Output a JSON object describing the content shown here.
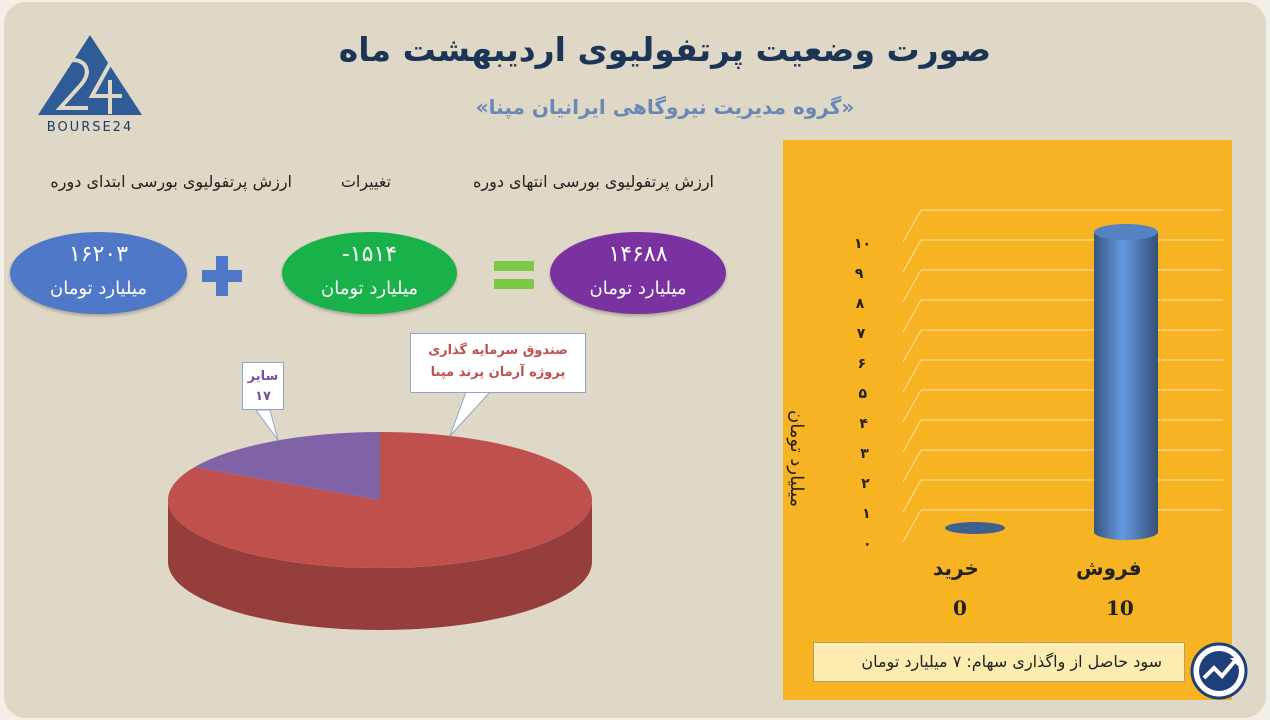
{
  "header": {
    "title": "صورت وضعیت پرتفولیوی اردیبهشت ماه",
    "subtitle": "«گروه مدیریت نیروگاهی ایرانیان مپنا»",
    "logo_text": "BOURSE24"
  },
  "equation": {
    "start": {
      "label": "ارزش پرتفولیوی بورسی ابتدای دوره",
      "value": "۱۶۲۰۳",
      "unit": "میلیارد تومان",
      "color": "#4f78c9"
    },
    "change": {
      "label": "تغییرات",
      "value": "-۱۵۱۴",
      "unit": "میلیارد تومان",
      "color": "#18b14a"
    },
    "end": {
      "label": "ارزش پرتفولیوی بورسی انتهای دوره",
      "value": "۱۴۶۸۸",
      "unit": "میلیارد تومان",
      "color": "#7a32a0"
    },
    "plus_color": "#4f78c9",
    "equals_color": "#7cc94a"
  },
  "chart_data": [
    {
      "type": "pie",
      "slices": [
        {
          "label": "سایر",
          "value": 17,
          "value_text": "۱۷",
          "color": "#8062a6"
        },
        {
          "label": "صندوق سرمایه گذاری پروژه آرمان پرند مپنا",
          "label_lines": [
            "صندوق سرمایه گذاری",
            "پروژه آرمان پرند مپنا"
          ],
          "value": 83,
          "color": "#c0504d"
        }
      ]
    },
    {
      "type": "bar",
      "categories": [
        "خرید",
        "فروش"
      ],
      "values": [
        0,
        10
      ],
      "value_labels": [
        "0",
        "10"
      ],
      "ylabel": "میلیارد تومان",
      "ylim": [
        0,
        10
      ],
      "yticks": [
        "۰",
        "۱",
        "۲",
        "۳",
        "۴",
        "۵",
        "۶",
        "۷",
        "۸",
        "۹",
        "۱۰"
      ],
      "bar_color": "#4a72a8",
      "background": "#f7b322",
      "grid": true
    }
  ],
  "note": {
    "text": "سود حاصل از واگذاری سهام: ۷ میلیارد تومان"
  }
}
